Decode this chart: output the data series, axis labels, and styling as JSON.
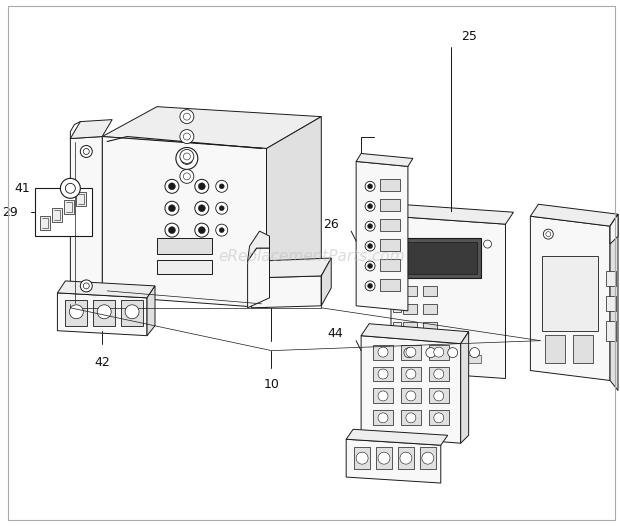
{
  "background_color": "#ffffff",
  "line_color": "#1a1a1a",
  "light_fill": "#f8f8f8",
  "mid_fill": "#eeeeee",
  "dark_fill": "#e0e0e0",
  "darker_fill": "#d0d0d0",
  "watermark_text": "eReplacementParts.com",
  "watermark_color": "#bbbbbb",
  "watermark_alpha": 0.5,
  "watermark_fontsize": 11,
  "label_fontsize": 9,
  "figsize": [
    6.2,
    5.26
  ],
  "dpi": 100
}
